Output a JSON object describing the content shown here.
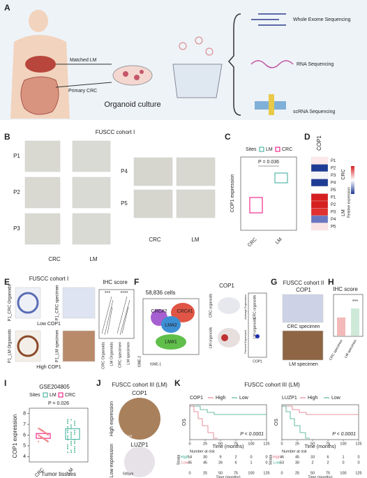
{
  "A": {
    "label": "A",
    "matched": "Matched LM",
    "primary": "Primary CRC",
    "culture": "Organoid culture",
    "seq": [
      "Whole Exome Sequencing",
      "RNA Sequencing",
      "scRNA Sequencing"
    ]
  },
  "B": {
    "label": "B",
    "title": "FUSCC cohort I",
    "rows_left": [
      "P1",
      "P2",
      "P3"
    ],
    "rows_right": [
      "P4",
      "P5"
    ],
    "cols": [
      "CRC",
      "LM"
    ]
  },
  "C": {
    "label": "C",
    "legend": [
      "Sites",
      "LM",
      "CRC"
    ],
    "p": "P = 0.036",
    "ylabel": "COP1 expression",
    "categories": [
      "CRC",
      "LM"
    ]
  },
  "D": {
    "label": "D",
    "title": "COP1",
    "rows": [
      "P1",
      "P2",
      "P3",
      "P4",
      "P5",
      "P1",
      "P2",
      "P3",
      "P4",
      "P5"
    ],
    "groups": [
      "CRC",
      "LM"
    ],
    "legend": "Relative expression"
  },
  "E": {
    "label": "E",
    "title": "FUSCC cohort I",
    "crc_org": "P1_CRC Organoids",
    "crc_spec": "P1_CRC specimen",
    "low": "Low COP1",
    "lm_org": "P1_LM Organoids",
    "lm_spec": "P1_LM specimen",
    "high": "High COP1",
    "ihc": "IHC score",
    "sig": [
      "***",
      "****"
    ],
    "categories": [
      "CRC Organoids",
      "LM Organoids",
      "CRC specimen",
      "LM specimen"
    ]
  },
  "F": {
    "label": "F",
    "cells": "58,836 cells",
    "clusters": [
      "CRC#2",
      "CRC#1",
      "LM#2",
      "LM#1"
    ],
    "axes": [
      "tSNE-2",
      "tSNE-1"
    ],
    "gene": "COP1",
    "groups": [
      "CRC organoids",
      "LM organoids"
    ],
    "avg": "Average Expression",
    "pct": "Percent Expressed"
  },
  "G": {
    "label": "G",
    "title": "FUSCC cohort II",
    "gene": "COP1",
    "crc": "CRC specimen",
    "lm": "LM specimen"
  },
  "H": {
    "label": "H",
    "title": "IHC score",
    "sig": "***",
    "categories": [
      "CRC specimen",
      "LM specimen"
    ]
  },
  "I": {
    "label": "I",
    "title": "GSE204805",
    "legend": [
      "Sites",
      "LM",
      "CRC"
    ],
    "p": "P = 0.026",
    "ylabel": "COP1 expression",
    "yticks": [
      4,
      5,
      6,
      7,
      8
    ],
    "ylim": [
      3.5,
      8.5
    ],
    "categories": [
      "CRC",
      "LM"
    ],
    "xlabel": "Tumor tissues"
  },
  "J": {
    "label": "J",
    "title": "FUSCC cohort III (LM)",
    "genes": [
      "COP1",
      "LUZP1"
    ],
    "levels": [
      "High expression",
      "Low expression"
    ],
    "scale": "500μm"
  },
  "K": {
    "label": "K",
    "title": "FUSCC cohort III (LM)",
    "plots": [
      {
        "gene": "COP1",
        "legend": [
          "High",
          "Low"
        ],
        "ylabel": "OS",
        "p": "P < 0.0001",
        "xlabel": "Time (months)",
        "xticks": [
          0,
          25,
          50,
          75,
          100,
          125
        ],
        "risk_title": "Number at risk",
        "strata": "Strata",
        "risk": [
          [
            "54",
            "30",
            "9",
            "2",
            "0",
            "0"
          ],
          [
            "45",
            "45",
            "26",
            "6",
            "1",
            "0"
          ]
        ]
      },
      {
        "gene": "LUZP1",
        "legend": [
          "High",
          "Low"
        ],
        "ylabel": "OS",
        "p": "P < 0.0001",
        "xlabel": "Time (months)",
        "xticks": [
          0,
          25,
          50,
          75,
          100,
          125
        ],
        "risk_title": "Number at risk",
        "strata": "Strata",
        "risk": [
          [
            "46",
            "45",
            "33",
            "6",
            "1",
            "0"
          ],
          [
            "53",
            "30",
            "2",
            "2",
            "0",
            "0"
          ]
        ]
      }
    ]
  }
}
